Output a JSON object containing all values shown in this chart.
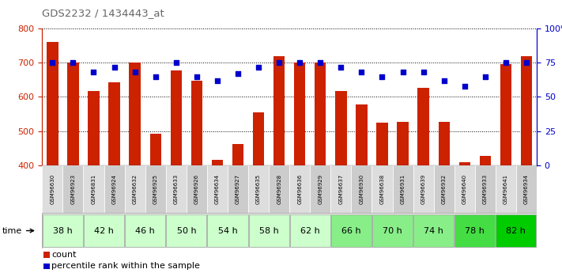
{
  "title": "GDS2232 / 1434443_at",
  "samples": [
    "GSM96630",
    "GSM96923",
    "GSM96831",
    "GSM96924",
    "GSM96632",
    "GSM96925",
    "GSM96633",
    "GSM96926",
    "GSM96634",
    "GSM96927",
    "GSM96635",
    "GSM96928",
    "GSM96636",
    "GSM96929",
    "GSM96637",
    "GSM96930",
    "GSM96638",
    "GSM96931",
    "GSM96639",
    "GSM96932",
    "GSM96640",
    "GSM96933",
    "GSM96641",
    "GSM96934"
  ],
  "counts": [
    760,
    700,
    617,
    643,
    700,
    493,
    678,
    648,
    415,
    463,
    554,
    720,
    700,
    700,
    618,
    577,
    525,
    527,
    627,
    527,
    408,
    427,
    697,
    720
  ],
  "percentile_ranks": [
    75,
    75,
    68,
    72,
    68,
    65,
    75,
    65,
    62,
    67,
    72,
    75,
    75,
    75,
    72,
    68,
    65,
    68,
    68,
    62,
    58,
    65,
    75,
    75
  ],
  "time_groups": [
    {
      "label": "38 h",
      "start": 0,
      "end": 2,
      "color": "#ccffcc"
    },
    {
      "label": "42 h",
      "start": 2,
      "end": 4,
      "color": "#ccffcc"
    },
    {
      "label": "46 h",
      "start": 4,
      "end": 6,
      "color": "#ccffcc"
    },
    {
      "label": "50 h",
      "start": 6,
      "end": 8,
      "color": "#ccffcc"
    },
    {
      "label": "54 h",
      "start": 8,
      "end": 10,
      "color": "#ccffcc"
    },
    {
      "label": "58 h",
      "start": 10,
      "end": 12,
      "color": "#ccffcc"
    },
    {
      "label": "62 h",
      "start": 12,
      "end": 14,
      "color": "#ccffcc"
    },
    {
      "label": "66 h",
      "start": 14,
      "end": 16,
      "color": "#88ee88"
    },
    {
      "label": "70 h",
      "start": 16,
      "end": 18,
      "color": "#88ee88"
    },
    {
      "label": "74 h",
      "start": 18,
      "end": 20,
      "color": "#88ee88"
    },
    {
      "label": "78 h",
      "start": 20,
      "end": 22,
      "color": "#44dd44"
    },
    {
      "label": "82 h",
      "start": 22,
      "end": 24,
      "color": "#00cc00"
    }
  ],
  "bar_color": "#cc2200",
  "dot_color": "#0000cc",
  "ylim_left": [
    400,
    800
  ],
  "ylim_right": [
    0,
    100
  ],
  "yticks_left": [
    400,
    500,
    600,
    700,
    800
  ],
  "yticks_right": [
    0,
    25,
    50,
    75,
    100
  ],
  "ylabel_left_color": "#cc2200",
  "ylabel_right_color": "#0000cc",
  "title_color": "#666666",
  "plot_bg": "#ffffff",
  "sample_cell_bg": "#dddddd",
  "sample_cell_bg_alt": "#cccccc"
}
